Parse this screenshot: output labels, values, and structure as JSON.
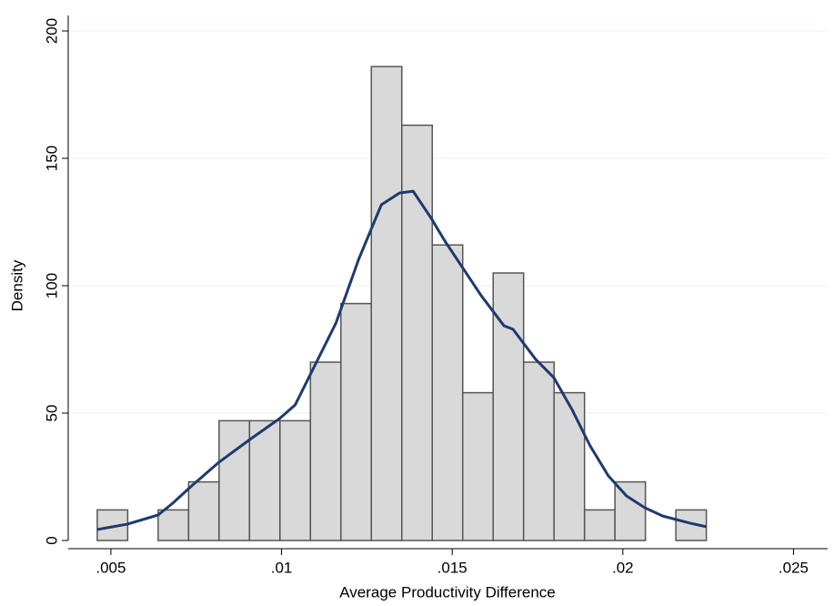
{
  "chart_data": {
    "type": "histogram",
    "x_label": "Average Productivity Difference",
    "y_label": "Density",
    "bins": [
      0.004601,
      0.005493,
      0.006385,
      0.007278,
      0.00817,
      0.009062,
      0.009954,
      0.010847,
      0.011739,
      0.012631,
      0.013523,
      0.014416,
      0.015308,
      0.0162,
      0.017092,
      0.017985,
      0.018877,
      0.019769,
      0.020661,
      0.021554,
      0.022446
    ],
    "values": [
      12,
      0,
      12,
      23,
      47,
      47,
      47,
      70,
      93,
      186,
      163,
      116,
      58,
      105,
      70,
      58,
      12,
      23,
      0,
      12
    ],
    "color": "#d9d9d9",
    "edge_color": "#555555",
    "density_curve": {
      "color": "#1f3a6e",
      "x": [
        0.004601,
        0.005479,
        0.006383,
        0.006809,
        0.00734,
        0.008165,
        0.009069,
        0.009947,
        0.010399,
        0.010931,
        0.011596,
        0.012261,
        0.012926,
        0.013457,
        0.013856,
        0.014388,
        0.014787,
        0.015319,
        0.015851,
        0.016516,
        0.016782,
        0.017447,
        0.017979,
        0.018511,
        0.019043,
        0.019574,
        0.020106,
        0.020638,
        0.02117,
        0.021968,
        0.022447
      ],
      "y": [
        4.3,
        6.4,
        10,
        14.6,
        21.1,
        30.7,
        39.6,
        47.9,
        53.2,
        67.5,
        85.4,
        110.4,
        131.8,
        136.4,
        137.1,
        126.4,
        117.5,
        106.8,
        96.1,
        84.3,
        82.9,
        71.1,
        63.9,
        51.4,
        37.1,
        25.4,
        17.5,
        12.9,
        9.6,
        6.8,
        5.4
      ]
    },
    "xlim": [
      0.00375,
      0.026
    ],
    "ylim": [
      0,
      200
    ],
    "xticks": [
      {
        "value": 0.005,
        "label": ".005"
      },
      {
        "value": 0.01,
        "label": ".01"
      },
      {
        "value": 0.015,
        "label": ".015"
      },
      {
        "value": 0.02,
        "label": ".02"
      },
      {
        "value": 0.025,
        "label": ".025"
      }
    ],
    "yticks": [
      0,
      50,
      100,
      150,
      200
    ],
    "grid": true
  }
}
